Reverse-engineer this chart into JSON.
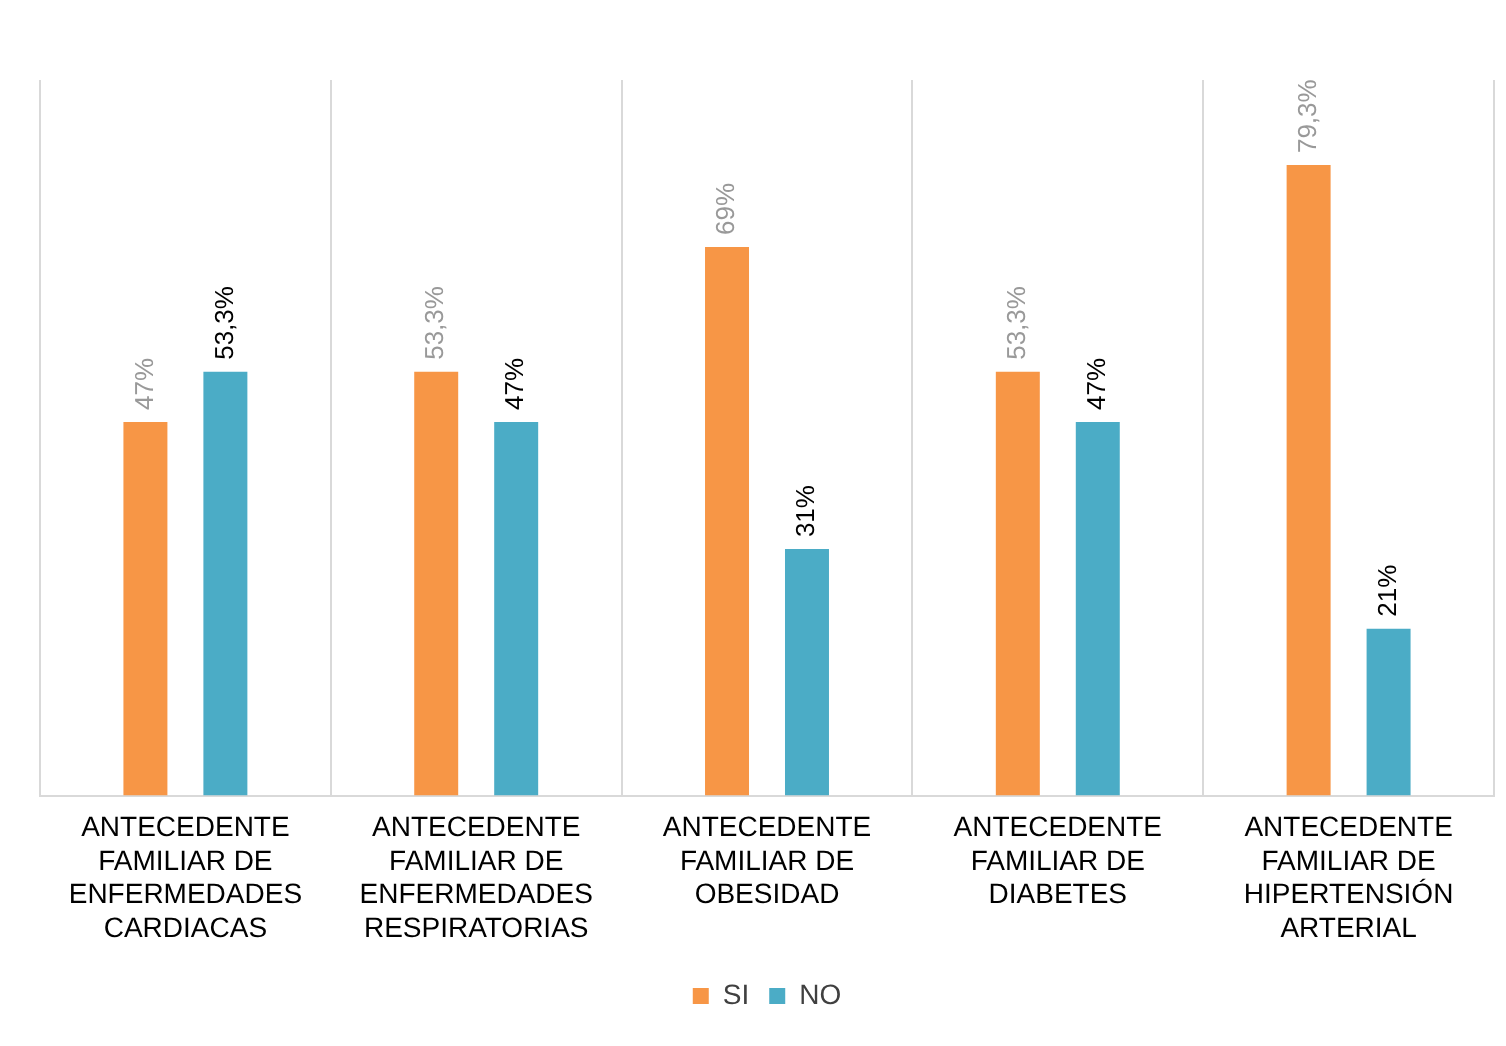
{
  "chart_data": {
    "type": "bar",
    "categories": [
      "ANTECEDENTE FAMILIAR DE ENFERMEDADES CARDIACAS",
      "ANTECEDENTE FAMILIAR DE ENFERMEDADES RESPIRATORIAS",
      "ANTECEDENTE FAMILIAR DE OBESIDAD",
      "ANTECEDENTE FAMILIAR DE DIABETES",
      "ANTECEDENTE FAMILIAR DE HIPERTENSIÓN ARTERIAL"
    ],
    "series": [
      {
        "name": "SI",
        "color": "#f79646",
        "values": [
          47,
          53.3,
          69,
          53.3,
          79.3
        ],
        "value_labels": [
          "47%",
          "53,3%",
          "69%",
          "53,3%",
          "79,3%"
        ]
      },
      {
        "name": "NO",
        "color": "#4bacc6",
        "values": [
          53.3,
          47,
          31,
          47,
          21
        ],
        "value_labels": [
          "53,3%",
          "47%",
          "31%",
          "47%",
          "21%"
        ]
      }
    ],
    "grid": "x",
    "legend": "bottom"
  }
}
